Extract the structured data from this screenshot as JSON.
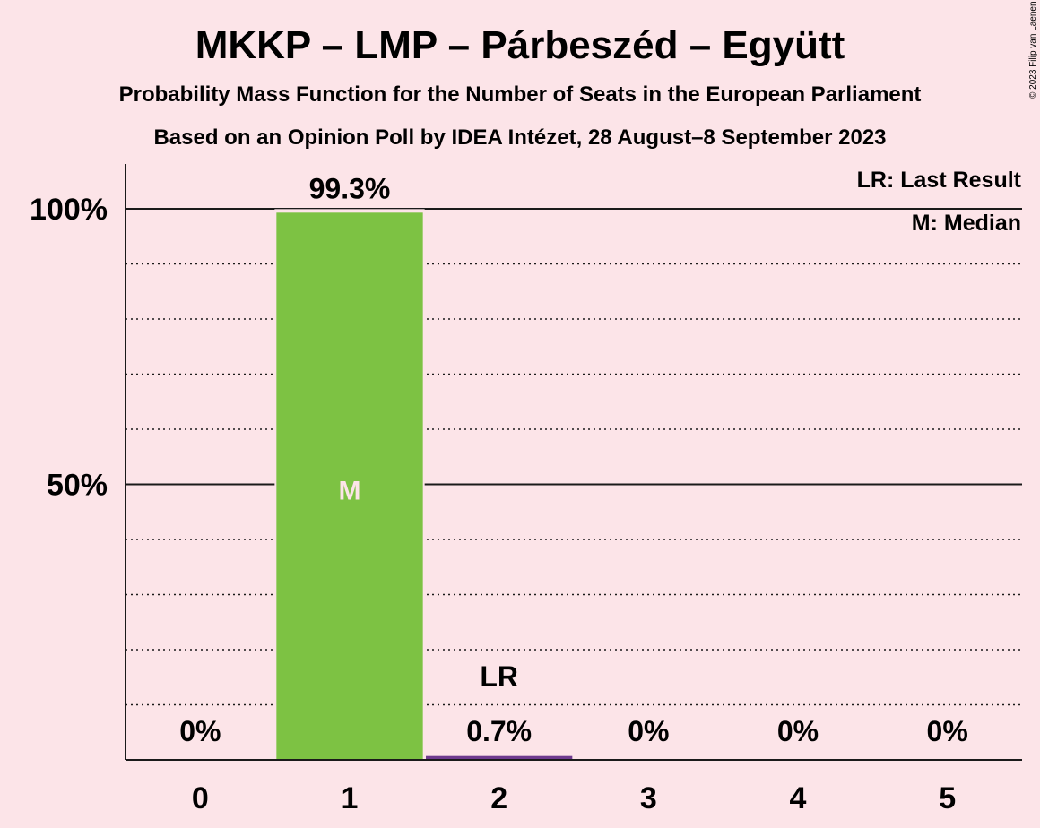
{
  "chart_data": {
    "type": "bar",
    "title": "MKKP – LMP – Párbeszéd – Együtt",
    "subtitle": "Probability Mass Function for the Number of Seats in the European Parliament",
    "subtitle2": "Based on an Opinion Poll by IDEA Intézet, 28 August–8 September 2023",
    "copyright": "© 2023 Filip van Laenen",
    "categories": [
      "0",
      "1",
      "2",
      "3",
      "4",
      "5"
    ],
    "values": [
      0,
      99.3,
      0.7,
      0,
      0,
      0
    ],
    "value_labels": [
      "0%",
      "99.3%",
      "0.7%",
      "0%",
      "0%",
      "0%"
    ],
    "bar_colors": [
      "#7dc243",
      "#7dc243",
      "#6e3a8e",
      "#7dc243",
      "#7dc243",
      "#7dc243"
    ],
    "ylim": [
      0,
      100
    ],
    "yticks": [
      {
        "value": 50,
        "label": "50%"
      },
      {
        "value": 100,
        "label": "100%"
      }
    ],
    "minor_grid": [
      10,
      20,
      30,
      40,
      60,
      70,
      80,
      90
    ],
    "grid": true,
    "median_category": "1",
    "median_marker": "M",
    "last_result_category": "2",
    "last_result_marker": "LR",
    "legend": {
      "placement": "top-right",
      "items": [
        "LR: Last Result",
        "M: Median"
      ]
    }
  }
}
